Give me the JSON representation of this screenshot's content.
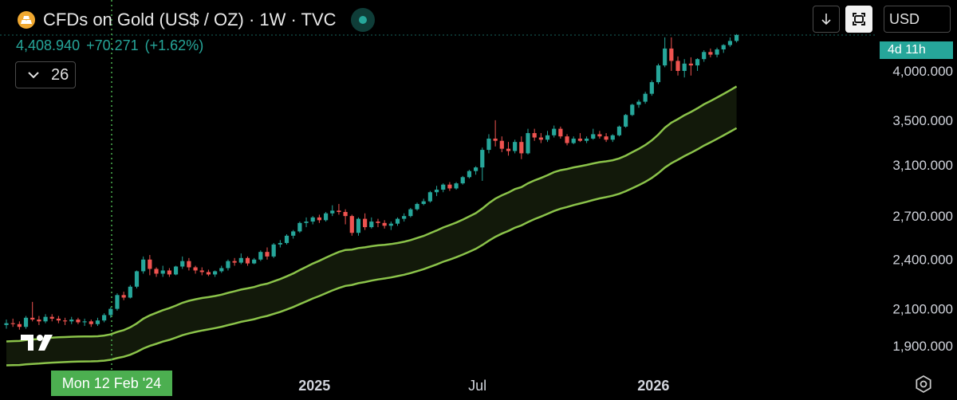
{
  "header": {
    "title": "CFDs on Gold (US$ / OZ) · 1W · TVC",
    "symbol_icon": "gold-bars-icon",
    "status_icon": "market-open-dot-icon"
  },
  "quote": {
    "price": "4,408.940",
    "change": "+70.271",
    "change_pct": "(+1.62%)"
  },
  "collapse": {
    "icon": "chevron-down-icon",
    "count": "26"
  },
  "toolbar": {
    "download_icon": "arrow-down-icon",
    "fit_icon": "fit-screen-icon",
    "currency": "USD"
  },
  "countdown": "4d 11h",
  "crosshair_label": "Mon 12 Feb '24",
  "colors": {
    "up": "#26a69a",
    "down": "#ef5350",
    "band": "#8bc34a",
    "highlight": "#4caf50",
    "background": "#000000"
  },
  "chart_data": {
    "type": "candlestick",
    "title": "CFDs on Gold (US$ / OZ)",
    "interval": "1W",
    "y_axis": {
      "ticks": [
        "4,000.000",
        "3,500.000",
        "3,100.000",
        "2,700.000",
        "2,400.000",
        "2,100.000",
        "1,900.000"
      ],
      "range": [
        1800,
        4480
      ],
      "scale": "log",
      "side": "right"
    },
    "x_axis": {
      "labels": [
        "Jul",
        "2025",
        "Jul",
        "2026"
      ],
      "bold": [
        "2025",
        "2026"
      ]
    },
    "last_price": 4408.94,
    "crosshair_date": "2024-02-12",
    "candles": [
      {
        "o": 2010,
        "h": 2040,
        "l": 1990,
        "c": 2020
      },
      {
        "o": 2020,
        "h": 2045,
        "l": 2000,
        "c": 2015
      },
      {
        "o": 2015,
        "h": 2030,
        "l": 1985,
        "c": 2000
      },
      {
        "o": 2000,
        "h": 2060,
        "l": 1990,
        "c": 2050
      },
      {
        "o": 2050,
        "h": 2140,
        "l": 2030,
        "c": 2040
      },
      {
        "o": 2040,
        "h": 2060,
        "l": 2010,
        "c": 2030
      },
      {
        "o": 2030,
        "h": 2070,
        "l": 2020,
        "c": 2055
      },
      {
        "o": 2055,
        "h": 2070,
        "l": 2030,
        "c": 2045
      },
      {
        "o": 2045,
        "h": 2060,
        "l": 2020,
        "c": 2035
      },
      {
        "o": 2035,
        "h": 2050,
        "l": 2010,
        "c": 2030
      },
      {
        "o": 2030,
        "h": 2055,
        "l": 2015,
        "c": 2040
      },
      {
        "o": 2040,
        "h": 2050,
        "l": 2015,
        "c": 2025
      },
      {
        "o": 2025,
        "h": 2045,
        "l": 2005,
        "c": 2030
      },
      {
        "o": 2030,
        "h": 2040,
        "l": 2000,
        "c": 2015
      },
      {
        "o": 2015,
        "h": 2050,
        "l": 2005,
        "c": 2035
      },
      {
        "o": 2035,
        "h": 2075,
        "l": 2025,
        "c": 2065
      },
      {
        "o": 2065,
        "h": 2110,
        "l": 2050,
        "c": 2100
      },
      {
        "o": 2100,
        "h": 2190,
        "l": 2090,
        "c": 2180
      },
      {
        "o": 2180,
        "h": 2200,
        "l": 2150,
        "c": 2165
      },
      {
        "o": 2165,
        "h": 2240,
        "l": 2160,
        "c": 2230
      },
      {
        "o": 2230,
        "h": 2330,
        "l": 2220,
        "c": 2325
      },
      {
        "o": 2325,
        "h": 2420,
        "l": 2310,
        "c": 2400
      },
      {
        "o": 2400,
        "h": 2430,
        "l": 2300,
        "c": 2340
      },
      {
        "o": 2340,
        "h": 2350,
        "l": 2290,
        "c": 2310
      },
      {
        "o": 2310,
        "h": 2360,
        "l": 2290,
        "c": 2330
      },
      {
        "o": 2330,
        "h": 2345,
        "l": 2290,
        "c": 2305
      },
      {
        "o": 2305,
        "h": 2360,
        "l": 2300,
        "c": 2355
      },
      {
        "o": 2355,
        "h": 2420,
        "l": 2340,
        "c": 2390
      },
      {
        "o": 2390,
        "h": 2410,
        "l": 2330,
        "c": 2350
      },
      {
        "o": 2350,
        "h": 2360,
        "l": 2310,
        "c": 2330
      },
      {
        "o": 2330,
        "h": 2350,
        "l": 2300,
        "c": 2320
      },
      {
        "o": 2320,
        "h": 2335,
        "l": 2295,
        "c": 2305
      },
      {
        "o": 2305,
        "h": 2330,
        "l": 2290,
        "c": 2325
      },
      {
        "o": 2325,
        "h": 2360,
        "l": 2315,
        "c": 2345
      },
      {
        "o": 2345,
        "h": 2400,
        "l": 2330,
        "c": 2390
      },
      {
        "o": 2390,
        "h": 2410,
        "l": 2360,
        "c": 2380
      },
      {
        "o": 2380,
        "h": 2440,
        "l": 2370,
        "c": 2410
      },
      {
        "o": 2410,
        "h": 2420,
        "l": 2360,
        "c": 2375
      },
      {
        "o": 2375,
        "h": 2410,
        "l": 2370,
        "c": 2400
      },
      {
        "o": 2400,
        "h": 2460,
        "l": 2390,
        "c": 2450
      },
      {
        "o": 2450,
        "h": 2480,
        "l": 2400,
        "c": 2420
      },
      {
        "o": 2420,
        "h": 2510,
        "l": 2410,
        "c": 2500
      },
      {
        "o": 2500,
        "h": 2530,
        "l": 2480,
        "c": 2510
      },
      {
        "o": 2510,
        "h": 2570,
        "l": 2500,
        "c": 2560
      },
      {
        "o": 2560,
        "h": 2600,
        "l": 2540,
        "c": 2590
      },
      {
        "o": 2590,
        "h": 2660,
        "l": 2580,
        "c": 2650
      },
      {
        "o": 2650,
        "h": 2690,
        "l": 2620,
        "c": 2660
      },
      {
        "o": 2660,
        "h": 2700,
        "l": 2640,
        "c": 2690
      },
      {
        "o": 2690,
        "h": 2710,
        "l": 2650,
        "c": 2670
      },
      {
        "o": 2670,
        "h": 2730,
        "l": 2660,
        "c": 2720
      },
      {
        "o": 2720,
        "h": 2780,
        "l": 2700,
        "c": 2740
      },
      {
        "o": 2740,
        "h": 2790,
        "l": 2710,
        "c": 2730
      },
      {
        "o": 2730,
        "h": 2750,
        "l": 2640,
        "c": 2700
      },
      {
        "o": 2700,
        "h": 2710,
        "l": 2560,
        "c": 2580
      },
      {
        "o": 2580,
        "h": 2690,
        "l": 2560,
        "c": 2680
      },
      {
        "o": 2680,
        "h": 2720,
        "l": 2600,
        "c": 2620
      },
      {
        "o": 2620,
        "h": 2690,
        "l": 2610,
        "c": 2660
      },
      {
        "o": 2660,
        "h": 2680,
        "l": 2620,
        "c": 2650
      },
      {
        "o": 2650,
        "h": 2670,
        "l": 2610,
        "c": 2630
      },
      {
        "o": 2630,
        "h": 2660,
        "l": 2600,
        "c": 2645
      },
      {
        "o": 2645,
        "h": 2690,
        "l": 2630,
        "c": 2680
      },
      {
        "o": 2680,
        "h": 2720,
        "l": 2660,
        "c": 2700
      },
      {
        "o": 2700,
        "h": 2760,
        "l": 2690,
        "c": 2750
      },
      {
        "o": 2750,
        "h": 2800,
        "l": 2740,
        "c": 2790
      },
      {
        "o": 2790,
        "h": 2830,
        "l": 2780,
        "c": 2810
      },
      {
        "o": 2810,
        "h": 2890,
        "l": 2800,
        "c": 2880
      },
      {
        "o": 2880,
        "h": 2930,
        "l": 2850,
        "c": 2900
      },
      {
        "o": 2900,
        "h": 2950,
        "l": 2880,
        "c": 2940
      },
      {
        "o": 2940,
        "h": 2960,
        "l": 2890,
        "c": 2910
      },
      {
        "o": 2910,
        "h": 2960,
        "l": 2900,
        "c": 2950
      },
      {
        "o": 2950,
        "h": 3010,
        "l": 2940,
        "c": 3000
      },
      {
        "o": 3000,
        "h": 3060,
        "l": 2990,
        "c": 3050
      },
      {
        "o": 3050,
        "h": 3090,
        "l": 3020,
        "c": 3080
      },
      {
        "o": 3080,
        "h": 3250,
        "l": 2970,
        "c": 3230
      },
      {
        "o": 3230,
        "h": 3370,
        "l": 3200,
        "c": 3330
      },
      {
        "o": 3330,
        "h": 3500,
        "l": 3260,
        "c": 3310
      },
      {
        "o": 3310,
        "h": 3350,
        "l": 3210,
        "c": 3240
      },
      {
        "o": 3240,
        "h": 3300,
        "l": 3180,
        "c": 3220
      },
      {
        "o": 3220,
        "h": 3320,
        "l": 3200,
        "c": 3300
      },
      {
        "o": 3300,
        "h": 3350,
        "l": 3150,
        "c": 3200
      },
      {
        "o": 3200,
        "h": 3420,
        "l": 3190,
        "c": 3380
      },
      {
        "o": 3380,
        "h": 3420,
        "l": 3310,
        "c": 3340
      },
      {
        "o": 3340,
        "h": 3380,
        "l": 3290,
        "c": 3320
      },
      {
        "o": 3320,
        "h": 3400,
        "l": 3300,
        "c": 3360
      },
      {
        "o": 3360,
        "h": 3450,
        "l": 3340,
        "c": 3420
      },
      {
        "o": 3420,
        "h": 3440,
        "l": 3330,
        "c": 3350
      },
      {
        "o": 3350,
        "h": 3370,
        "l": 3270,
        "c": 3290
      },
      {
        "o": 3290,
        "h": 3350,
        "l": 3280,
        "c": 3330
      },
      {
        "o": 3330,
        "h": 3380,
        "l": 3300,
        "c": 3310
      },
      {
        "o": 3310,
        "h": 3350,
        "l": 3290,
        "c": 3330
      },
      {
        "o": 3330,
        "h": 3420,
        "l": 3320,
        "c": 3370
      },
      {
        "o": 3370,
        "h": 3400,
        "l": 3330,
        "c": 3350
      },
      {
        "o": 3350,
        "h": 3380,
        "l": 3300,
        "c": 3320
      },
      {
        "o": 3320,
        "h": 3370,
        "l": 3300,
        "c": 3360
      },
      {
        "o": 3360,
        "h": 3450,
        "l": 3350,
        "c": 3440
      },
      {
        "o": 3440,
        "h": 3560,
        "l": 3430,
        "c": 3550
      },
      {
        "o": 3550,
        "h": 3660,
        "l": 3540,
        "c": 3650
      },
      {
        "o": 3650,
        "h": 3700,
        "l": 3620,
        "c": 3680
      },
      {
        "o": 3680,
        "h": 3780,
        "l": 3660,
        "c": 3760
      },
      {
        "o": 3760,
        "h": 3900,
        "l": 3740,
        "c": 3880
      },
      {
        "o": 3880,
        "h": 4080,
        "l": 3860,
        "c": 4060
      },
      {
        "o": 4060,
        "h": 4380,
        "l": 4040,
        "c": 4250
      },
      {
        "o": 4250,
        "h": 4380,
        "l": 4000,
        "c": 4110
      },
      {
        "o": 4110,
        "h": 4160,
        "l": 3950,
        "c": 4000
      },
      {
        "o": 4000,
        "h": 4130,
        "l": 3930,
        "c": 4080
      },
      {
        "o": 4080,
        "h": 4150,
        "l": 3950,
        "c": 4060
      },
      {
        "o": 4060,
        "h": 4140,
        "l": 4000,
        "c": 4130
      },
      {
        "o": 4130,
        "h": 4230,
        "l": 4100,
        "c": 4210
      },
      {
        "o": 4210,
        "h": 4250,
        "l": 4150,
        "c": 4180
      },
      {
        "o": 4180,
        "h": 4260,
        "l": 4150,
        "c": 4240
      },
      {
        "o": 4240,
        "h": 4300,
        "l": 4200,
        "c": 4290
      },
      {
        "o": 4290,
        "h": 4380,
        "l": 4270,
        "c": 4338
      },
      {
        "o": 4338,
        "h": 4420,
        "l": 4320,
        "c": 4408.94
      }
    ]
  }
}
